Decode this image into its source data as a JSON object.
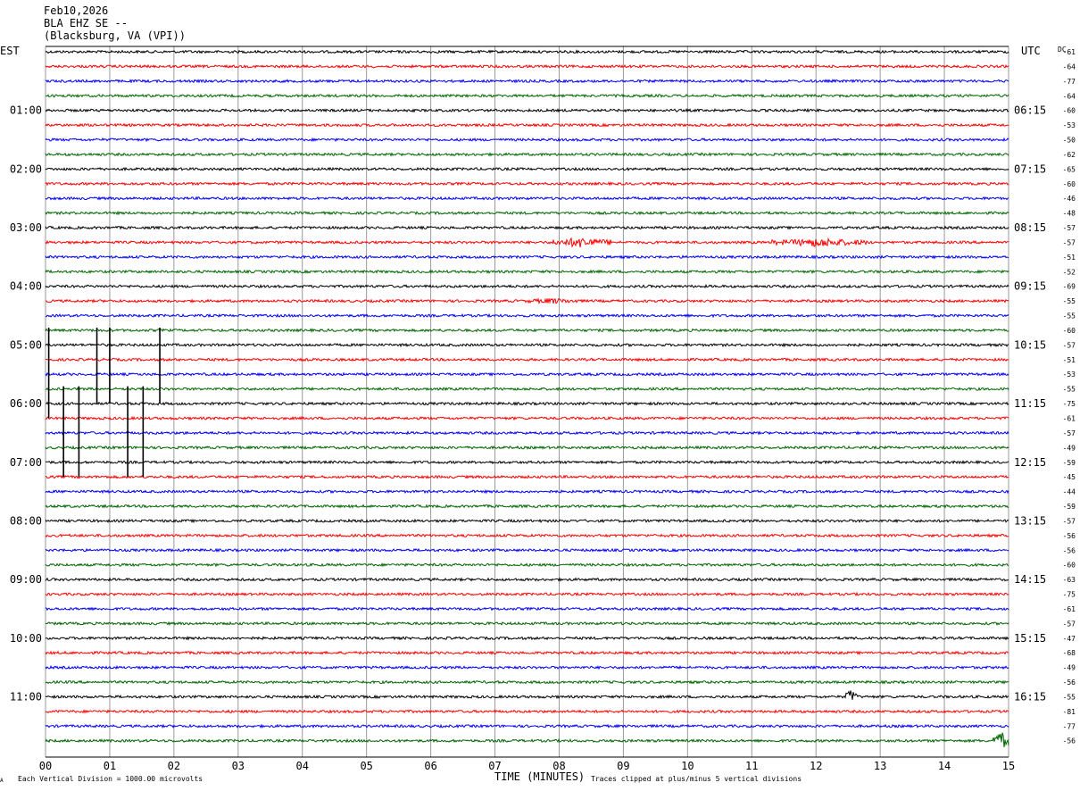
{
  "header": {
    "date": "Feb10,2026",
    "station": "BLA EHZ SE --",
    "location": "(Blacksburg, VA (VPI))"
  },
  "labels": {
    "left_tz": "EST",
    "right_tz": "UTC",
    "dc": "DC",
    "footer_left": "Each Vertical Division = 1000.00 microvolts",
    "footer_right": "Traces clipped at plus/minus 5 vertical divisions",
    "corner_mark": "A"
  },
  "colors": {
    "cycle": [
      "#000000",
      "#ff0000",
      "#0000ff",
      "#006600"
    ],
    "grid": "#999999"
  },
  "chart_data": {
    "type": "line",
    "xlabel": "TIME (MINUTES)",
    "x_ticks": [
      "00",
      "01",
      "02",
      "03",
      "04",
      "05",
      "06",
      "07",
      "08",
      "09",
      "10",
      "11",
      "12",
      "13",
      "14",
      "15"
    ],
    "xlim": [
      0,
      15
    ],
    "traces_per_hour": 4,
    "left_hour_labels": [
      "01:00",
      "02:00",
      "03:00",
      "04:00",
      "05:00",
      "06:00",
      "07:00",
      "08:00",
      "09:00",
      "10:00",
      "11:00"
    ],
    "right_hour_labels": [
      "06:15",
      "07:15",
      "08:15",
      "09:15",
      "10:15",
      "11:15",
      "12:15",
      "13:15",
      "14:15",
      "15:15",
      "16:15"
    ],
    "dc_offsets": [
      -61,
      -64,
      -77,
      -64,
      -60,
      -53,
      -50,
      -62,
      -65,
      -60,
      -46,
      -48,
      -57,
      -57,
      -51,
      -52,
      -69,
      -55,
      -55,
      -60,
      -57,
      -51,
      -53,
      -55,
      -75,
      -61,
      -57,
      -49,
      -59,
      -45,
      -44,
      -59,
      -57,
      -56,
      -56,
      -60,
      -63,
      -75,
      -61,
      -57,
      -47,
      -68,
      -49,
      -56,
      -55,
      -81,
      -77,
      -56
    ],
    "events": [
      {
        "trace": 13,
        "from_min": 7.9,
        "to_min": 8.8,
        "amp": 5
      },
      {
        "trace": 13,
        "from_min": 11.3,
        "to_min": 12.8,
        "amp": 4
      },
      {
        "trace": 17,
        "from_min": 7.5,
        "to_min": 8.3,
        "amp": 2
      },
      {
        "trace": 44,
        "from_min": 12.45,
        "to_min": 12.65,
        "amp": 8
      },
      {
        "trace": 47,
        "from_min": 14.75,
        "to_min": 15.0,
        "amp": 11
      }
    ],
    "spikes": [
      {
        "from_trace": 19,
        "to_trace": 25,
        "minute": 0.05
      },
      {
        "from_trace": 19,
        "to_trace": 24,
        "minute": 0.8
      },
      {
        "from_trace": 19,
        "to_trace": 24,
        "minute": 1.0
      },
      {
        "from_trace": 19,
        "to_trace": 24,
        "minute": 1.78
      },
      {
        "from_trace": 23,
        "to_trace": 29,
        "minute": 0.28
      },
      {
        "from_trace": 23,
        "to_trace": 29,
        "minute": 0.52
      },
      {
        "from_trace": 23,
        "to_trace": 29,
        "minute": 1.28
      },
      {
        "from_trace": 23,
        "to_trace": 29,
        "minute": 1.52
      }
    ]
  }
}
